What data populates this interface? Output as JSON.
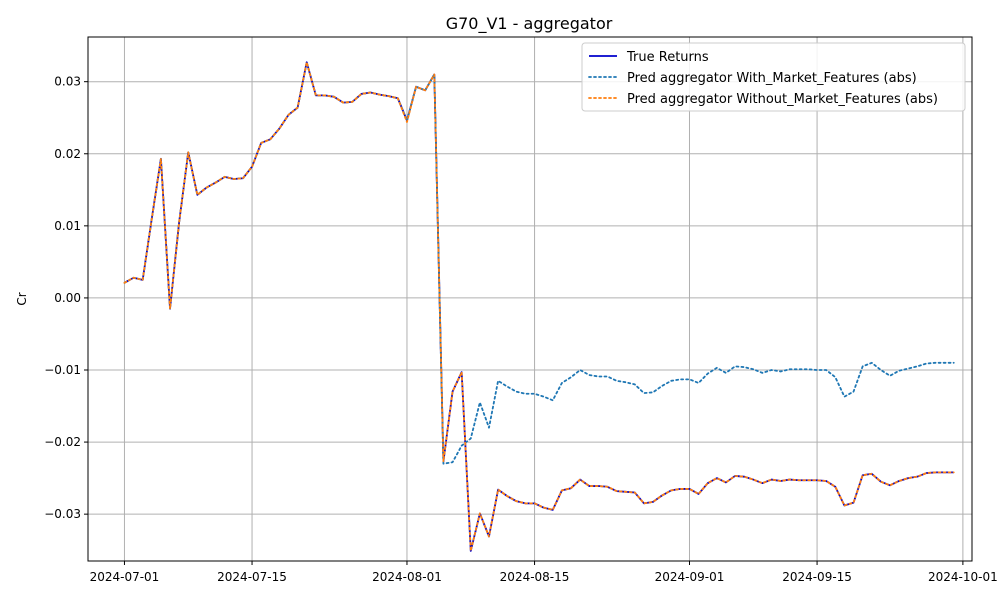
{
  "chart_data": {
    "type": "line",
    "title": "G70_V1 - aggregator",
    "xlabel": "",
    "ylabel": "Cr",
    "xlim": [
      "2024-06-27",
      "2024-10-02"
    ],
    "ylim": [
      -0.0365,
      0.0362
    ],
    "grid": true,
    "legend_position": "top-right",
    "xticks": [
      "2024-07-01",
      "2024-07-15",
      "2024-08-01",
      "2024-08-15",
      "2024-09-01",
      "2024-09-15",
      "2024-10-01"
    ],
    "yticks": [
      -0.03,
      -0.02,
      -0.01,
      0.0,
      0.01,
      0.02,
      0.03
    ],
    "ytick_labels": [
      "−0.03",
      "−0.02",
      "−0.01",
      "0.00",
      "0.01",
      "0.02",
      "0.03"
    ],
    "x": [
      "2024-07-01",
      "2024-07-02",
      "2024-07-03",
      "2024-07-04",
      "2024-07-05",
      "2024-07-06",
      "2024-07-07",
      "2024-07-08",
      "2024-07-09",
      "2024-07-10",
      "2024-07-11",
      "2024-07-12",
      "2024-07-13",
      "2024-07-14",
      "2024-07-15",
      "2024-07-16",
      "2024-07-17",
      "2024-07-18",
      "2024-07-19",
      "2024-07-20",
      "2024-07-21",
      "2024-07-22",
      "2024-07-23",
      "2024-07-24",
      "2024-07-25",
      "2024-07-26",
      "2024-07-27",
      "2024-07-28",
      "2024-07-29",
      "2024-07-30",
      "2024-07-31",
      "2024-08-01",
      "2024-08-02",
      "2024-08-03",
      "2024-08-04",
      "2024-08-05",
      "2024-08-06",
      "2024-08-07",
      "2024-08-08",
      "2024-08-09",
      "2024-08-10",
      "2024-08-11",
      "2024-08-12",
      "2024-08-13",
      "2024-08-14",
      "2024-08-15",
      "2024-08-16",
      "2024-08-17",
      "2024-08-18",
      "2024-08-19",
      "2024-08-20",
      "2024-08-21",
      "2024-08-22",
      "2024-08-23",
      "2024-08-24",
      "2024-08-25",
      "2024-08-26",
      "2024-08-27",
      "2024-08-28",
      "2024-08-29",
      "2024-08-30",
      "2024-08-31",
      "2024-09-01",
      "2024-09-02",
      "2024-09-03",
      "2024-09-04",
      "2024-09-05",
      "2024-09-06",
      "2024-09-07",
      "2024-09-08",
      "2024-09-09",
      "2024-09-10",
      "2024-09-11",
      "2024-09-12",
      "2024-09-13",
      "2024-09-14",
      "2024-09-15",
      "2024-09-16",
      "2024-09-17",
      "2024-09-18",
      "2024-09-19",
      "2024-09-20",
      "2024-09-21",
      "2024-09-22",
      "2024-09-23",
      "2024-09-24",
      "2024-09-25",
      "2024-09-26",
      "2024-09-27",
      "2024-09-28",
      "2024-09-29",
      "2024-09-30"
    ],
    "series": [
      {
        "name": "True Returns",
        "color": "#0000cc",
        "style": "solid",
        "values": [
          0.0021,
          0.0028,
          0.0025,
          0.011,
          0.0193,
          -0.0015,
          0.0105,
          0.0202,
          0.0143,
          0.0153,
          0.016,
          0.0168,
          0.0165,
          0.0166,
          0.0182,
          0.0215,
          0.022,
          0.0235,
          0.0254,
          0.0264,
          0.0327,
          0.0281,
          0.0281,
          0.0279,
          0.0271,
          0.0272,
          0.0283,
          0.0285,
          0.0282,
          0.028,
          0.0277,
          0.0246,
          0.0293,
          0.0288,
          0.031,
          -0.0227,
          -0.013,
          -0.0103,
          -0.0351,
          -0.0299,
          -0.0331,
          -0.0266,
          -0.0275,
          -0.0282,
          -0.0285,
          -0.0285,
          -0.0291,
          -0.0294,
          -0.0267,
          -0.0264,
          -0.0252,
          -0.0261,
          -0.0261,
          -0.0262,
          -0.0268,
          -0.0269,
          -0.027,
          -0.0285,
          -0.0283,
          -0.0274,
          -0.0267,
          -0.0265,
          -0.0265,
          -0.0272,
          -0.0257,
          -0.025,
          -0.0256,
          -0.0247,
          -0.0248,
          -0.0252,
          -0.0257,
          -0.0252,
          -0.0254,
          -0.0252,
          -0.0253,
          -0.0253,
          -0.0253,
          -0.0254,
          -0.0262,
          -0.0288,
          -0.0284,
          -0.0246,
          -0.0244,
          -0.0255,
          -0.026,
          -0.0254,
          -0.025,
          -0.0248,
          -0.0243,
          -0.0242,
          -0.0242,
          -0.0242
        ]
      },
      {
        "name": "Pred aggregator With_Market_Features (abs)",
        "color": "#1f77b4",
        "style": "dotted",
        "values": [
          0.0021,
          0.0028,
          0.0025,
          0.011,
          0.0193,
          -0.0015,
          0.0105,
          0.0202,
          0.0143,
          0.0153,
          0.016,
          0.0168,
          0.0165,
          0.0166,
          0.0182,
          0.0215,
          0.022,
          0.0235,
          0.0254,
          0.0264,
          0.0327,
          0.0281,
          0.0281,
          0.0279,
          0.0271,
          0.0272,
          0.0283,
          0.0285,
          0.0282,
          0.028,
          0.0277,
          0.0246,
          0.0293,
          0.0288,
          0.031,
          -0.023,
          -0.0228,
          -0.0205,
          -0.0195,
          -0.0145,
          -0.018,
          -0.0115,
          -0.0123,
          -0.013,
          -0.0133,
          -0.0133,
          -0.0137,
          -0.0142,
          -0.0118,
          -0.011,
          -0.01,
          -0.0107,
          -0.0109,
          -0.0109,
          -0.0115,
          -0.0117,
          -0.012,
          -0.0132,
          -0.0131,
          -0.0122,
          -0.0115,
          -0.0113,
          -0.0113,
          -0.0118,
          -0.0105,
          -0.0097,
          -0.0104,
          -0.0095,
          -0.0096,
          -0.0099,
          -0.0104,
          -0.01,
          -0.0102,
          -0.0099,
          -0.0099,
          -0.0099,
          -0.01,
          -0.01,
          -0.011,
          -0.0137,
          -0.013,
          -0.0095,
          -0.009,
          -0.01,
          -0.0108,
          -0.0101,
          -0.0098,
          -0.0095,
          -0.0091,
          -0.009,
          -0.009,
          -0.009
        ]
      },
      {
        "name": "Pred aggregator Without_Market_Features (abs)",
        "color": "#ff7f0e",
        "style": "dotted",
        "values": [
          0.0021,
          0.0028,
          0.0025,
          0.011,
          0.0193,
          -0.0015,
          0.0105,
          0.0202,
          0.0143,
          0.0153,
          0.016,
          0.0168,
          0.0165,
          0.0166,
          0.0182,
          0.0215,
          0.022,
          0.0235,
          0.0254,
          0.0264,
          0.0327,
          0.0281,
          0.0281,
          0.0279,
          0.0271,
          0.0272,
          0.0283,
          0.0285,
          0.0282,
          0.028,
          0.0277,
          0.0244,
          0.0293,
          0.0288,
          0.031,
          -0.0227,
          -0.013,
          -0.0103,
          -0.0351,
          -0.0299,
          -0.0331,
          -0.0266,
          -0.0275,
          -0.0282,
          -0.0285,
          -0.0285,
          -0.0291,
          -0.0294,
          -0.0267,
          -0.0264,
          -0.0252,
          -0.0261,
          -0.0261,
          -0.0262,
          -0.0268,
          -0.0269,
          -0.027,
          -0.0285,
          -0.0283,
          -0.0274,
          -0.0267,
          -0.0265,
          -0.0265,
          -0.0272,
          -0.0257,
          -0.025,
          -0.0256,
          -0.0247,
          -0.0248,
          -0.0252,
          -0.0257,
          -0.0252,
          -0.0254,
          -0.0252,
          -0.0253,
          -0.0253,
          -0.0253,
          -0.0254,
          -0.0262,
          -0.0288,
          -0.0284,
          -0.0246,
          -0.0244,
          -0.0255,
          -0.026,
          -0.0254,
          -0.025,
          -0.0248,
          -0.0243,
          -0.0242,
          -0.0242,
          -0.0242
        ]
      }
    ]
  }
}
